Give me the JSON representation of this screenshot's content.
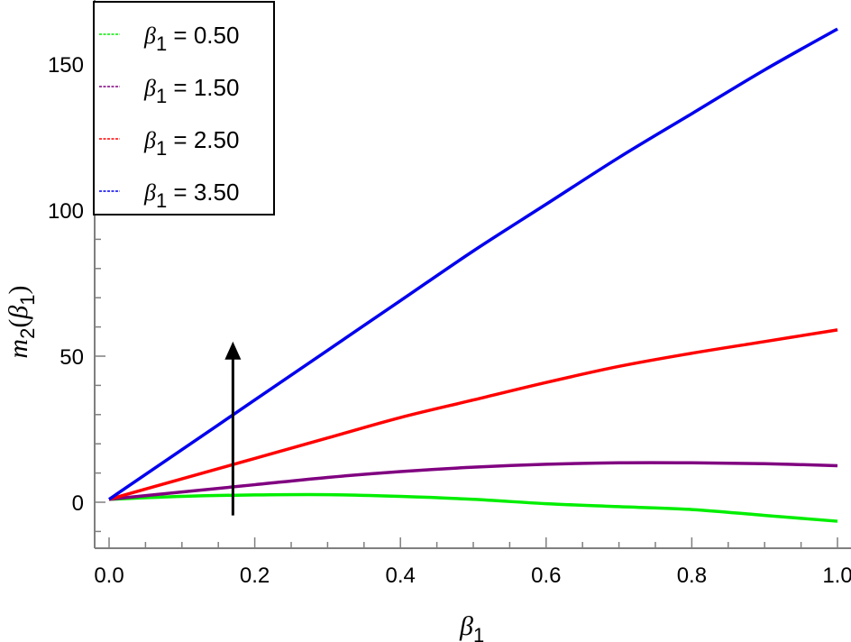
{
  "chart_data": {
    "type": "line",
    "xlabel": "β",
    "xlabel_sub": "1",
    "ylabel_main": "m",
    "ylabel_sub": "2",
    "ylabel_arg": "β",
    "ylabel_arg_sub": "1",
    "xlim": [
      0,
      1
    ],
    "ylim": [
      -15,
      170
    ],
    "x_ticks": [
      0.0,
      0.2,
      0.4,
      0.6,
      0.8,
      1.0
    ],
    "x_tick_labels": [
      "0.0",
      "0.2",
      "0.4",
      "0.6",
      "0.8",
      "1.0"
    ],
    "y_ticks": [
      0,
      50,
      100,
      150
    ],
    "y_tick_labels": [
      "0",
      "50",
      "100",
      "150"
    ],
    "grid": false,
    "legend_position": "top-left",
    "x": [
      0.0,
      0.1,
      0.2,
      0.3,
      0.4,
      0.5,
      0.6,
      0.7,
      0.8,
      0.9,
      1.0
    ],
    "series": [
      {
        "name": "β₁ = 0.50",
        "legend_symbol": "β",
        "legend_sub": "1",
        "legend_value": " = 0.50",
        "color": "#00ee00",
        "values": [
          1,
          2,
          2.5,
          2.6,
          2,
          1,
          -0.5,
          -1.5,
          -2.5,
          -4.5,
          -6.5
        ]
      },
      {
        "name": "β₁ = 1.50",
        "legend_symbol": "β",
        "legend_sub": "1",
        "legend_value": " = 1.50",
        "color": "#800080",
        "values": [
          1,
          3.5,
          6,
          8.5,
          10.5,
          12,
          13,
          13.5,
          13.5,
          13.2,
          12.5
        ]
      },
      {
        "name": "β₁ = 2.50",
        "legend_symbol": "β",
        "legend_sub": "1",
        "legend_value": " = 2.50",
        "color": "#ff0000",
        "values": [
          1,
          8,
          15,
          22,
          29,
          35,
          41,
          46.5,
          51,
          55,
          59
        ]
      },
      {
        "name": "β₁ = 3.50",
        "legend_symbol": "β",
        "legend_sub": "1",
        "legend_value": " = 3.50",
        "color": "#0000ee",
        "values": [
          1,
          18,
          35,
          52,
          69,
          86,
          102,
          118,
          133,
          148,
          162
        ]
      }
    ],
    "annotation": {
      "type": "arrow",
      "x": 0.17,
      "y_start": -4.5,
      "y_end": 55,
      "color": "#000000"
    }
  }
}
